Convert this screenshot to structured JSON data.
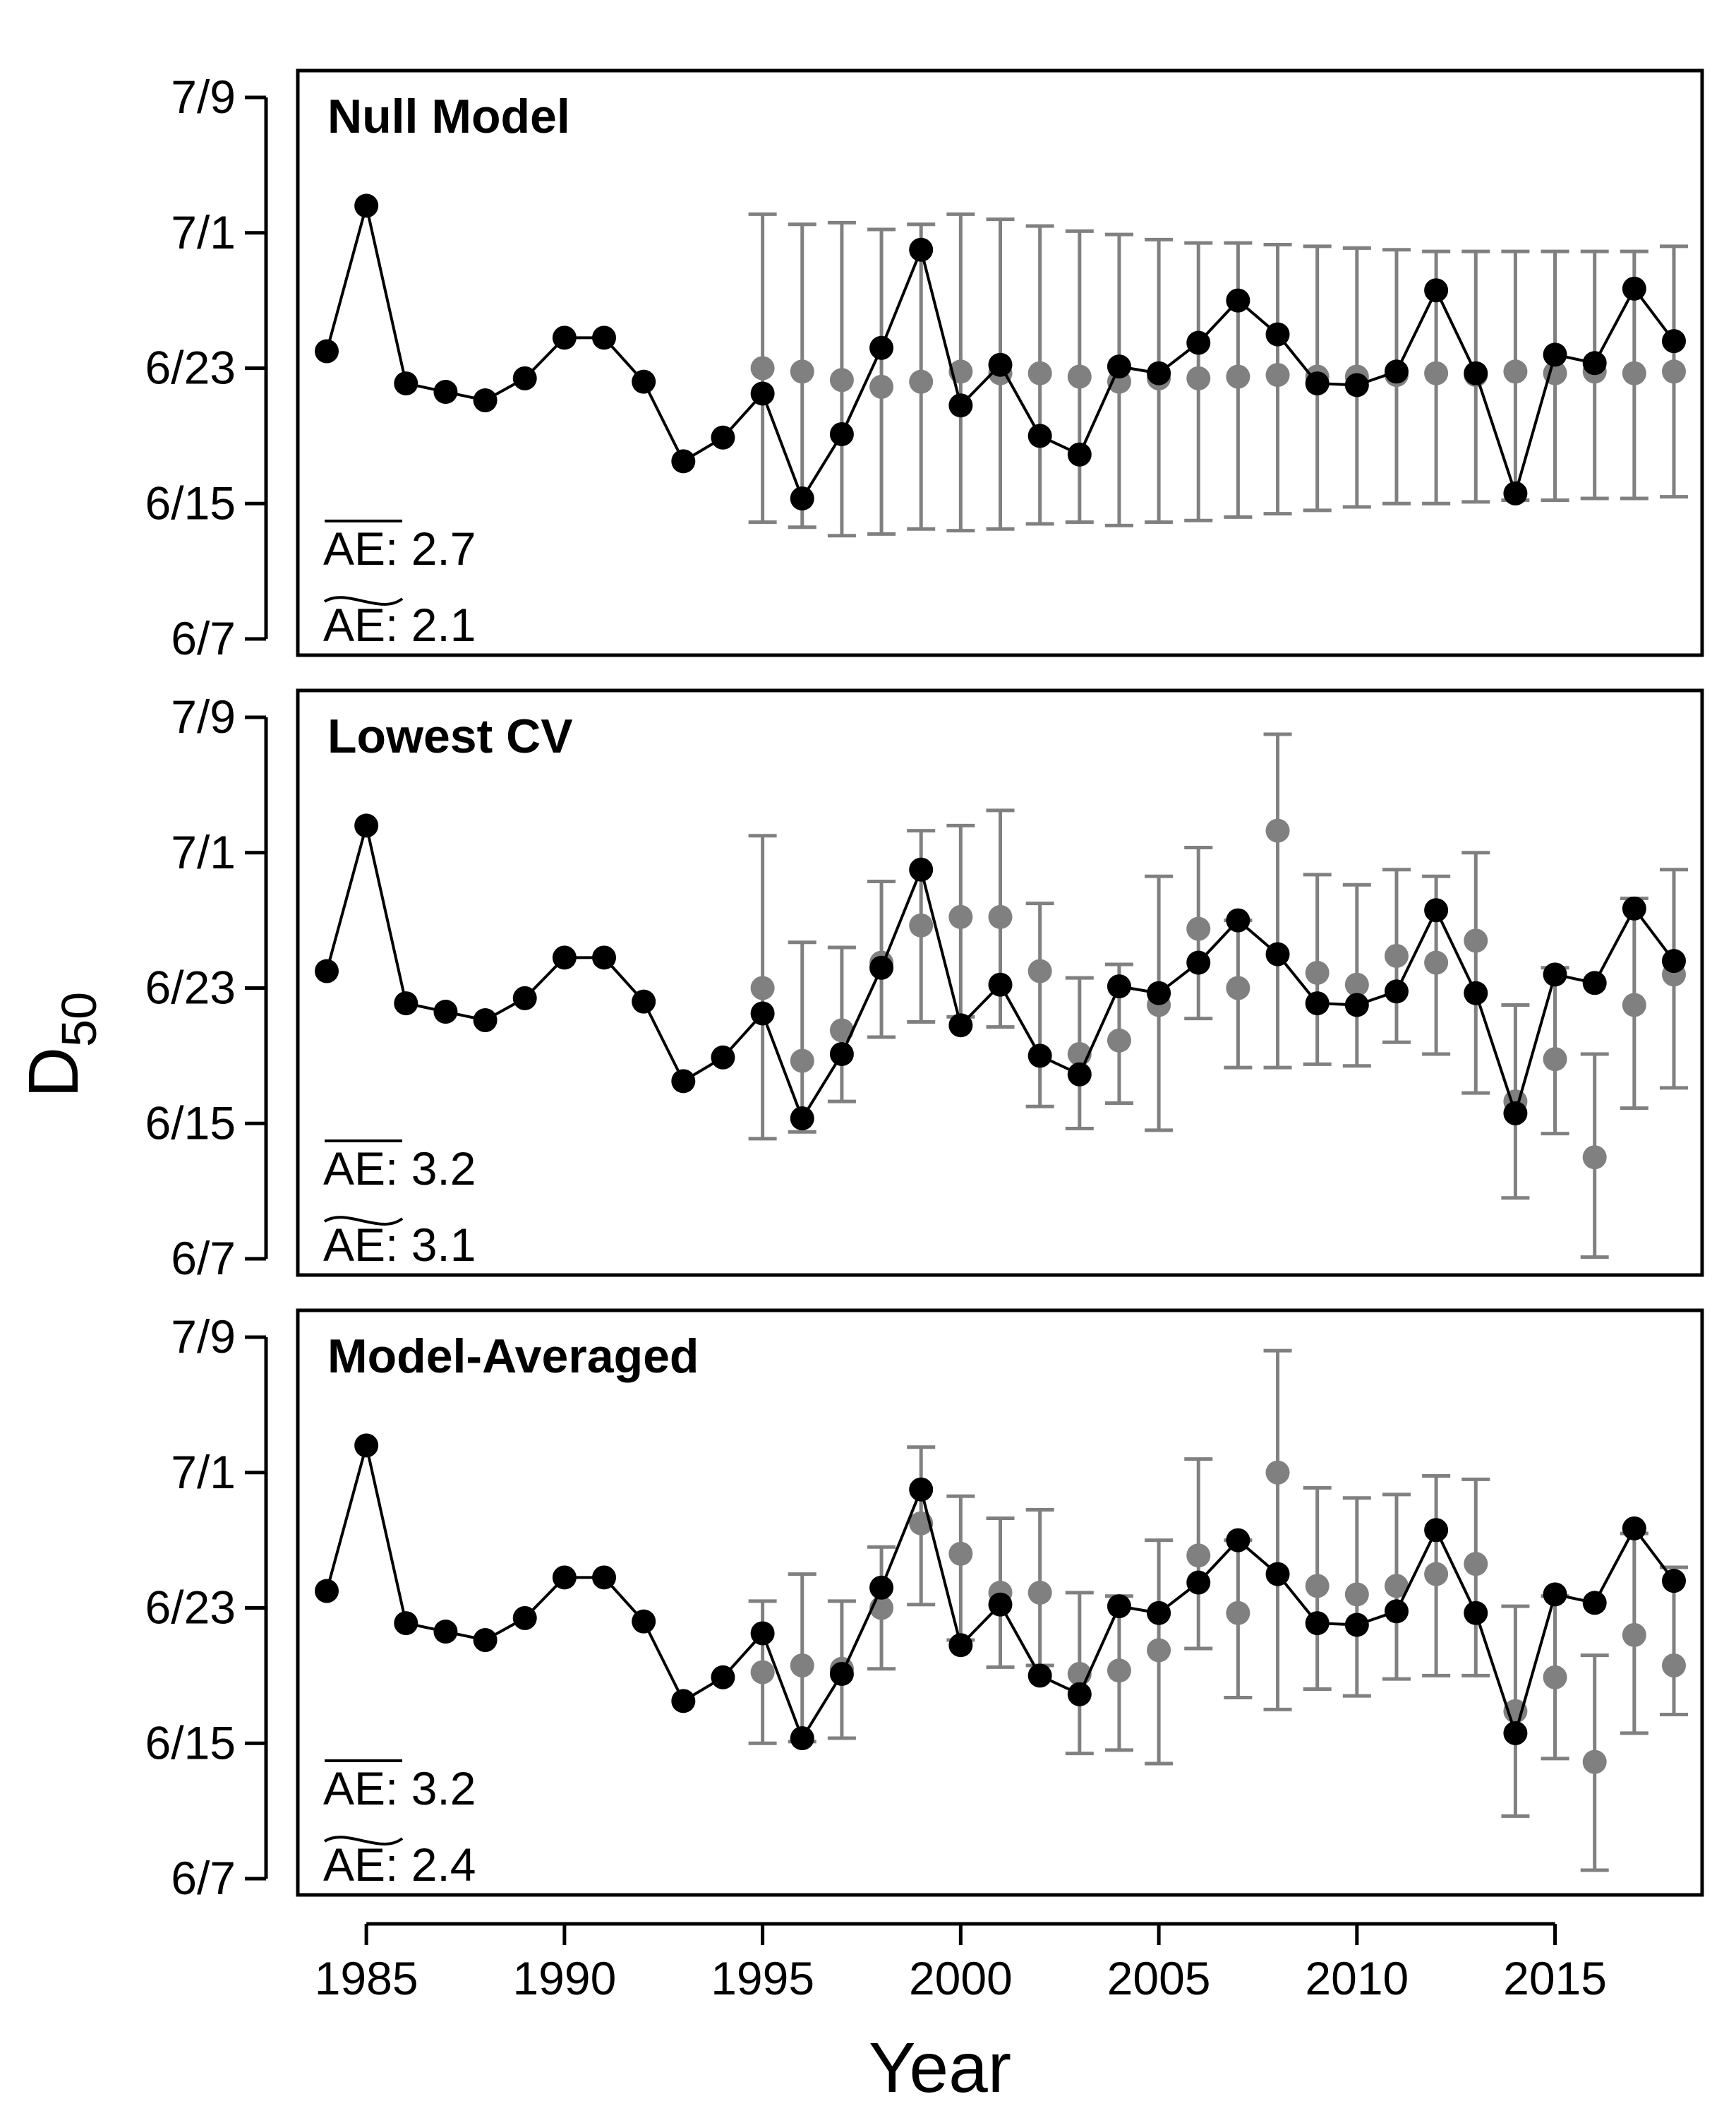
{
  "figure": {
    "ylabel": "D",
    "ylabel_sub": "50",
    "xlabel": "Year",
    "colors": {
      "observed": "#000000",
      "predicted": "#808080",
      "frame": "#000000"
    }
  },
  "chart_data": [
    {
      "type": "line",
      "title": "Null Model",
      "ae_mean": "AE: 2.7",
      "ae_median": "AE: 2.1",
      "xlim": [
        1983.3,
        1988.5
      ],
      "ylim": [
        164,
        188
      ],
      "yticks": [
        {
          "v": 164,
          "label": "6/7"
        },
        {
          "v": 172,
          "label": "6/15"
        },
        {
          "v": 180,
          "label": "6/23"
        },
        {
          "v": 188,
          "label": "7/1"
        },
        {
          "v": 196,
          "label": "7/9"
        }
      ],
      "observed": {
        "years": [
          1984,
          1985,
          1986,
          1987,
          1988,
          1989,
          1990,
          1991,
          1992,
          1993,
          1994,
          1995,
          1996,
          1997,
          1998,
          1999,
          2000,
          2001,
          2002,
          2003,
          2004,
          2005,
          2006,
          2007,
          2008,
          2009,
          2010,
          2011,
          2012,
          2013,
          2014,
          2015,
          2016,
          2017,
          2018
        ],
        "values": [
          181.0,
          189.6,
          179.1,
          178.6,
          178.1,
          179.4,
          181.8,
          181.8,
          179.2,
          174.5,
          175.9,
          178.5,
          172.3,
          176.1,
          181.2,
          187.0,
          177.8,
          180.2,
          176.0,
          174.9,
          180.1,
          179.7,
          181.5,
          184.0,
          182.0,
          179.1,
          179.0,
          179.8,
          184.6,
          179.7,
          172.6,
          180.8,
          180.3,
          184.7,
          181.6
        ]
      },
      "predicted": {
        "years": [
          1995,
          1996,
          1997,
          1998,
          1999,
          2000,
          2001,
          2002,
          2003,
          2004,
          2005,
          2006,
          2007,
          2008,
          2009,
          2010,
          2011,
          2012,
          2013,
          2014,
          2015,
          2016,
          2017,
          2018
        ],
        "values": [
          180.0,
          179.8,
          179.3,
          178.9,
          179.2,
          179.8,
          179.7,
          179.7,
          179.5,
          179.2,
          179.4,
          179.4,
          179.5,
          179.6,
          179.5,
          179.5,
          179.6,
          179.7,
          179.6,
          179.8,
          179.7,
          179.8,
          179.7,
          179.8
        ],
        "lower": [
          170.9,
          170.6,
          170.1,
          170.2,
          170.5,
          170.4,
          170.5,
          170.8,
          170.9,
          170.7,
          170.9,
          171.0,
          171.2,
          171.4,
          171.6,
          171.8,
          172.0,
          172.0,
          172.1,
          172.2,
          172.2,
          172.3,
          172.3,
          172.4
        ],
        "upper": [
          189.1,
          188.5,
          188.6,
          188.2,
          188.5,
          189.1,
          188.8,
          188.4,
          188.1,
          187.9,
          187.6,
          187.4,
          187.4,
          187.3,
          187.2,
          187.1,
          187.0,
          186.9,
          186.9,
          186.9,
          186.9,
          186.9,
          186.9,
          187.2
        ]
      }
    },
    {
      "type": "line",
      "title": "Lowest CV",
      "ae_mean": "AE: 3.2",
      "ae_median": "AE: 3.1",
      "xlim": [
        1983.3,
        2019.3
      ],
      "ylim": [
        164,
        196
      ],
      "yticks": [
        {
          "v": 164,
          "label": "6/7"
        },
        {
          "v": 172,
          "label": "6/15"
        },
        {
          "v": 180,
          "label": "6/23"
        },
        {
          "v": 188,
          "label": "7/1"
        },
        {
          "v": 196,
          "label": "7/9"
        }
      ],
      "observed": {
        "years": [
          1984,
          1985,
          1986,
          1987,
          1988,
          1989,
          1990,
          1991,
          1992,
          1993,
          1994,
          1995,
          1996,
          1997,
          1998,
          1999,
          2000,
          2001,
          2002,
          2003,
          2004,
          2005,
          2006,
          2007,
          2008,
          2009,
          2010,
          2011,
          2012,
          2013,
          2014,
          2015,
          2016,
          2017,
          2018
        ],
        "values": [
          181.0,
          189.6,
          179.1,
          178.6,
          178.1,
          179.4,
          181.8,
          181.8,
          179.2,
          174.5,
          175.9,
          178.5,
          172.3,
          176.1,
          181.2,
          187.0,
          177.8,
          180.2,
          176.0,
          174.9,
          180.1,
          179.7,
          181.5,
          184.0,
          182.0,
          179.1,
          179.0,
          179.8,
          184.6,
          179.7,
          172.6,
          180.8,
          180.3,
          184.7,
          181.6
        ]
      },
      "predicted": {
        "years": [
          1995,
          1996,
          1997,
          1998,
          1999,
          2000,
          2001,
          2002,
          2003,
          2004,
          2005,
          2006,
          2007,
          2008,
          2009,
          2010,
          2011,
          2012,
          2013,
          2014,
          2015,
          2016,
          2017,
          2018
        ],
        "values": [
          180.0,
          175.7,
          177.5,
          181.5,
          183.7,
          184.2,
          184.2,
          181.0,
          176.1,
          176.9,
          179.0,
          183.5,
          180.0,
          189.3,
          180.9,
          180.2,
          181.9,
          181.5,
          182.8,
          173.3,
          175.8,
          170.0,
          179.0,
          180.8
        ],
        "lower": [
          171.1,
          171.5,
          173.3,
          177.1,
          178.0,
          178.3,
          177.7,
          173.0,
          171.7,
          173.2,
          171.6,
          178.2,
          175.3,
          175.3,
          175.5,
          175.4,
          176.8,
          176.1,
          173.8,
          167.6,
          171.4,
          164.1,
          172.9,
          174.1
        ],
        "upper": [
          189.0,
          182.7,
          182.4,
          186.3,
          189.3,
          189.6,
          190.5,
          185.0,
          180.6,
          181.4,
          186.6,
          188.3,
          184.0,
          195.0,
          186.7,
          186.1,
          187.0,
          186.6,
          188.0,
          179.0,
          181.2,
          176.1,
          185.3,
          187.0
        ]
      }
    },
    {
      "type": "line",
      "title": "Model-Averaged",
      "ae_mean": "AE: 3.2",
      "ae_median": "AE: 2.4",
      "xlim": [
        1983.3,
        2019.3
      ],
      "ylim": [
        164,
        196
      ],
      "yticks": [
        {
          "v": 164,
          "label": "6/7"
        },
        {
          "v": 172,
          "label": "6/15"
        },
        {
          "v": 180,
          "label": "6/23"
        },
        {
          "v": 188,
          "label": "7/1"
        },
        {
          "v": 196,
          "label": "7/9"
        }
      ],
      "observed": {
        "years": [
          1984,
          1985,
          1986,
          1987,
          1988,
          1989,
          1990,
          1991,
          1992,
          1993,
          1994,
          1995,
          1996,
          1997,
          1998,
          1999,
          2000,
          2001,
          2002,
          2003,
          2004,
          2005,
          2006,
          2007,
          2008,
          2009,
          2010,
          2011,
          2012,
          2013,
          2014,
          2015,
          2016,
          2017,
          2018
        ],
        "values": [
          181.0,
          189.6,
          179.1,
          178.6,
          178.1,
          179.4,
          181.8,
          181.8,
          179.2,
          174.5,
          175.9,
          178.5,
          172.3,
          176.1,
          181.2,
          187.0,
          177.8,
          180.2,
          176.0,
          174.9,
          180.1,
          179.7,
          181.5,
          184.0,
          182.0,
          179.1,
          179.0,
          179.8,
          184.6,
          179.7,
          172.6,
          180.8,
          180.3,
          184.7,
          181.6
        ]
      },
      "predicted": {
        "years": [
          1995,
          1996,
          1997,
          1998,
          1999,
          2000,
          2001,
          2002,
          2003,
          2004,
          2005,
          2006,
          2007,
          2008,
          2009,
          2010,
          2011,
          2012,
          2013,
          2014,
          2015,
          2016,
          2017,
          2018
        ],
        "values": [
          176.2,
          176.6,
          176.4,
          180.0,
          185.0,
          183.2,
          180.9,
          180.9,
          176.1,
          176.3,
          177.5,
          183.1,
          179.7,
          188.0,
          181.3,
          180.8,
          181.3,
          182.0,
          182.6,
          173.9,
          175.9,
          170.9,
          178.4,
          176.6
        ],
        "lower": [
          172.0,
          172.1,
          172.3,
          176.4,
          180.2,
          178.1,
          176.5,
          176.6,
          171.4,
          171.6,
          170.8,
          177.6,
          174.7,
          174.0,
          175.2,
          174.8,
          175.8,
          176.0,
          176.0,
          167.7,
          171.1,
          164.5,
          172.6,
          173.7
        ],
        "upper": [
          180.4,
          182.0,
          180.4,
          183.6,
          189.5,
          186.6,
          185.3,
          185.8,
          180.9,
          180.7,
          184.0,
          188.8,
          184.0,
          195.2,
          187.1,
          186.5,
          186.7,
          187.8,
          187.6,
          180.1,
          180.7,
          177.2,
          184.4,
          182.4
        ]
      }
    }
  ]
}
